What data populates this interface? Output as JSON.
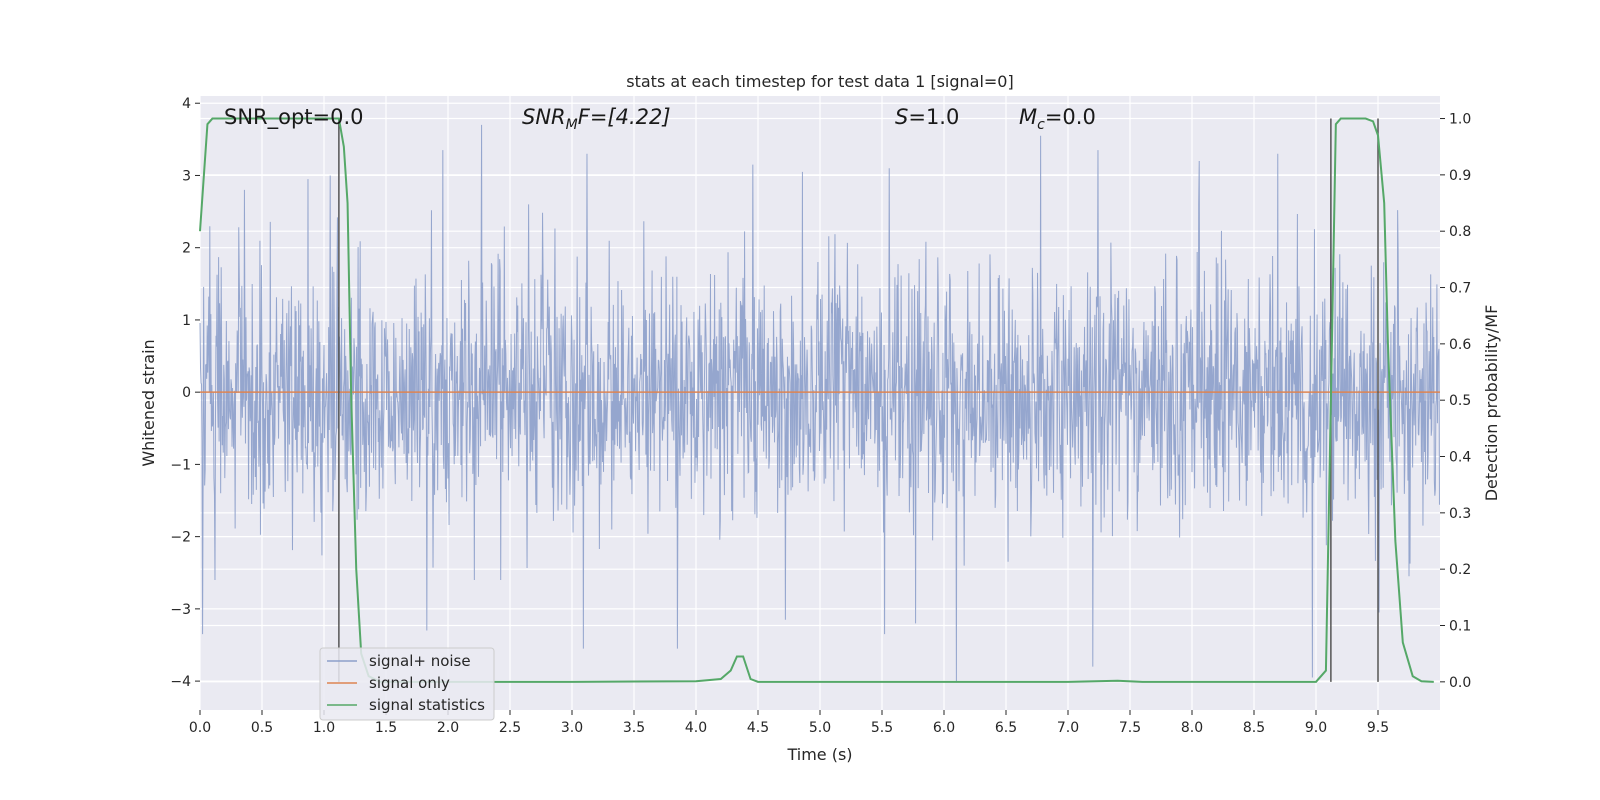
{
  "chart_data": {
    "type": "line",
    "title": "stats at each timestep for test data 1 [signal=0]",
    "xlabel": "Time (s)",
    "ylabel": "Whitened strain",
    "ylabel_right": "Detection probability/MF",
    "xlim": [
      0,
      10
    ],
    "ylim": [
      -4.4,
      4.1
    ],
    "ylim_right": [
      -0.05,
      1.04
    ],
    "grid": true,
    "legend_position": "lower-left",
    "x_ticks": [
      0.0,
      0.5,
      1.0,
      1.5,
      2.0,
      2.5,
      3.0,
      3.5,
      4.0,
      4.5,
      5.0,
      5.5,
      6.0,
      6.5,
      7.0,
      7.5,
      8.0,
      8.5,
      9.0,
      9.5
    ],
    "x_tick_labels": [
      "0.0",
      "0.5",
      "1.0",
      "1.5",
      "2.0",
      "2.5",
      "3.0",
      "3.5",
      "4.0",
      "4.5",
      "5.0",
      "5.5",
      "6.0",
      "6.5",
      "7.0",
      "7.5",
      "8.0",
      "8.5",
      "9.0",
      "9.5"
    ],
    "y_ticks": [
      -4,
      -3,
      -2,
      -1,
      0,
      1,
      2,
      3,
      4
    ],
    "y_tick_labels": [
      "−4",
      "−3",
      "−2",
      "−1",
      "0",
      "1",
      "2",
      "3",
      "4"
    ],
    "y_right_ticks": [
      0.0,
      0.1,
      0.2,
      0.3,
      0.4,
      0.5,
      0.6,
      0.7,
      0.8,
      0.9,
      1.0
    ],
    "y_right_tick_labels": [
      "0.0",
      "0.1",
      "0.2",
      "0.3",
      "0.4",
      "0.5",
      "0.6",
      "0.7",
      "0.8",
      "0.9",
      "1.0"
    ],
    "annotations": {
      "snr_opt": "SNR_opt=0.0",
      "snr_mf_sym": "SNR",
      "snr_mf_sub": "M",
      "snr_mf_tail": "F=[4.22]",
      "s_sym": "S",
      "s_val": "=1.0",
      "mc_sym": "M",
      "mc_sub": "c",
      "mc_val": "=0.0"
    },
    "series": [
      {
        "name": "signal+ noise",
        "color": "#8c9fca",
        "type": "noise",
        "sigma": 0.85,
        "positive_peaks": [
          [
            0.02,
            3.3
          ],
          [
            0.36,
            2.8
          ],
          [
            0.87,
            2.95
          ],
          [
            1.05,
            3.0
          ],
          [
            1.96,
            3.35
          ],
          [
            2.27,
            3.7
          ],
          [
            3.12,
            3.3
          ],
          [
            4.46,
            3.15
          ],
          [
            4.86,
            3.05
          ],
          [
            5.56,
            3.1
          ],
          [
            6.78,
            3.55
          ],
          [
            7.24,
            3.35
          ],
          [
            8.06,
            3.2
          ],
          [
            8.69,
            3.3
          ],
          [
            9.12,
            3.2
          ]
        ],
        "negative_peaks": [
          [
            0.02,
            -3.35
          ],
          [
            0.12,
            -2.6
          ],
          [
            1.83,
            -3.3
          ],
          [
            3.09,
            -3.55
          ],
          [
            3.85,
            -3.55
          ],
          [
            4.72,
            -3.15
          ],
          [
            5.52,
            -3.35
          ],
          [
            5.77,
            -3.2
          ],
          [
            6.1,
            -4.0
          ],
          [
            7.2,
            -3.8
          ],
          [
            8.97,
            -3.95
          ],
          [
            9.51,
            -3.05
          ]
        ]
      },
      {
        "name": "signal only",
        "color": "#dd8452",
        "x": [
          0,
          10
        ],
        "y": [
          0,
          0
        ]
      },
      {
        "name": "signal statistics",
        "color": "#55a868",
        "axis": "right",
        "x": [
          0.0,
          0.06,
          0.1,
          0.15,
          0.5,
          1.0,
          1.12,
          1.16,
          1.19,
          1.22,
          1.26,
          1.3,
          1.36,
          1.45,
          1.6,
          2.0,
          3.0,
          4.0,
          4.2,
          4.28,
          4.33,
          4.38,
          4.44,
          4.5,
          5.0,
          6.0,
          7.0,
          7.4,
          7.6,
          8.0,
          9.0,
          9.08,
          9.12,
          9.16,
          9.2,
          9.28,
          9.4,
          9.46,
          9.5,
          9.55,
          9.58,
          9.64,
          9.7,
          9.78,
          9.85,
          9.95
        ],
        "y": [
          0.8,
          0.99,
          1.0,
          1.0,
          1.0,
          1.0,
          1.0,
          0.95,
          0.85,
          0.5,
          0.2,
          0.05,
          0.01,
          0.0,
          0.0,
          0.0,
          0.0,
          0.001,
          0.005,
          0.02,
          0.045,
          0.045,
          0.005,
          0.0,
          0.0,
          0.0,
          0.0,
          0.002,
          0.0,
          0.0,
          0.0,
          0.02,
          0.5,
          0.99,
          1.0,
          1.0,
          1.0,
          0.995,
          0.97,
          0.85,
          0.6,
          0.25,
          0.07,
          0.01,
          0.001,
          0.0
        ]
      }
    ],
    "vertical_lines": [
      1.12,
      9.12,
      9.5
    ],
    "vertical_line_color": "#555555"
  }
}
